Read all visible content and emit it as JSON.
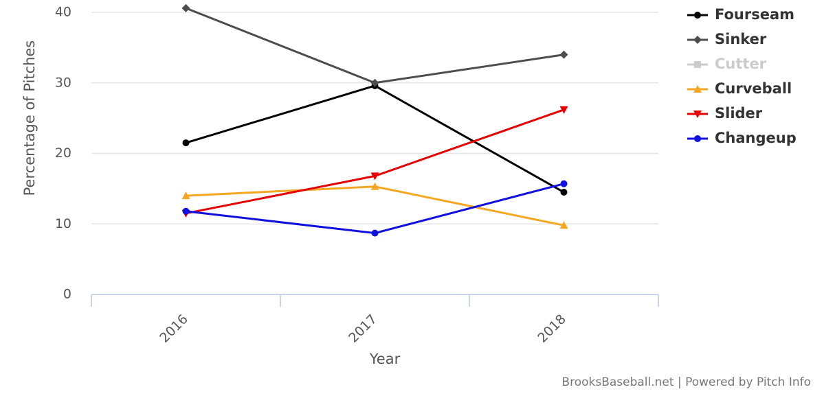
{
  "chart_data": {
    "type": "line",
    "categories": [
      "2016",
      "2017",
      "2018"
    ],
    "x_label": "Year",
    "y_label": "Percentage of Pitches",
    "credit": "BrooksBaseball.net | Powered by Pitch Info",
    "ylim": [
      0,
      40
    ],
    "yticks": [
      0,
      10,
      20,
      30,
      40
    ],
    "grid": true,
    "legend": "right",
    "series": [
      {
        "name": "Fourseam",
        "color": "#000000",
        "marker": "circle",
        "values": [
          21.5,
          29.6,
          14.5
        ]
      },
      {
        "name": "Sinker",
        "color": "#4d4d4d",
        "marker": "diamond",
        "values": [
          40.6,
          30.0,
          34.0
        ]
      },
      {
        "name": "Cutter",
        "color": "#cccccc",
        "marker": "square",
        "hidden": true,
        "values": [
          null,
          null,
          null
        ]
      },
      {
        "name": "Curveball",
        "color": "#f5a623",
        "marker": "triangle",
        "values": [
          14.0,
          15.3,
          9.8
        ]
      },
      {
        "name": "Slider",
        "color": "#e60000",
        "marker": "triangle-down",
        "values": [
          11.5,
          16.8,
          26.2
        ]
      },
      {
        "name": "Changeup",
        "color": "#1010e0",
        "marker": "circle",
        "values": [
          11.8,
          8.7,
          15.7
        ]
      }
    ]
  }
}
